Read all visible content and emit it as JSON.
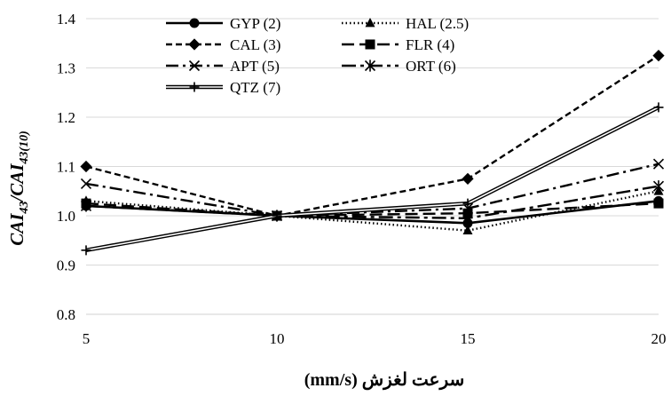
{
  "chart_data": {
    "type": "line",
    "x": [
      5,
      10,
      15,
      20
    ],
    "xlim": [
      5,
      20
    ],
    "ylim": [
      0.8,
      1.4
    ],
    "x_ticks": [
      "5",
      "10",
      "15",
      "20"
    ],
    "y_ticks": [
      "0.8",
      "0.9",
      "1.0",
      "1.1",
      "1.2",
      "1.3",
      "1.4"
    ],
    "xlabel": "سرعت لغزش (mm/s)",
    "ylabel_main": "CAI",
    "ylabel_sub1": "43",
    "ylabel_slash": "/CAI",
    "ylabel_sub2": "43(10)",
    "grid": "horizontal",
    "legend_position": "top-left",
    "series": [
      {
        "name": "GYP (2)",
        "values": [
          1.02,
          1.0,
          0.985,
          1.03
        ],
        "color": "#000000",
        "dash": "solid",
        "marker": "circle"
      },
      {
        "name": "HAL (2.5)",
        "values": [
          1.03,
          1.0,
          0.97,
          1.05
        ],
        "color": "#000000",
        "dash": "dotted",
        "marker": "triangle"
      },
      {
        "name": "CAL (3)",
        "values": [
          1.1,
          1.0,
          1.075,
          1.325
        ],
        "color": "#000000",
        "dash": "dashed",
        "marker": "diamond"
      },
      {
        "name": "FLR (4)",
        "values": [
          1.025,
          1.0,
          1.005,
          1.025
        ],
        "color": "#000000",
        "dash": "longdash",
        "marker": "square"
      },
      {
        "name": "APT (5)",
        "values": [
          1.065,
          1.0,
          1.015,
          1.105
        ],
        "color": "#000000",
        "dash": "dashdot",
        "marker": "x"
      },
      {
        "name": "ORT (6)",
        "values": [
          1.02,
          1.0,
          0.995,
          1.06
        ],
        "color": "#000000",
        "dash": "longdashdot",
        "marker": "star"
      },
      {
        "name": "QTZ (7)",
        "values": [
          0.93,
          1.0,
          1.025,
          1.22
        ],
        "color": "#000000",
        "dash": "double",
        "marker": "plus"
      }
    ]
  }
}
